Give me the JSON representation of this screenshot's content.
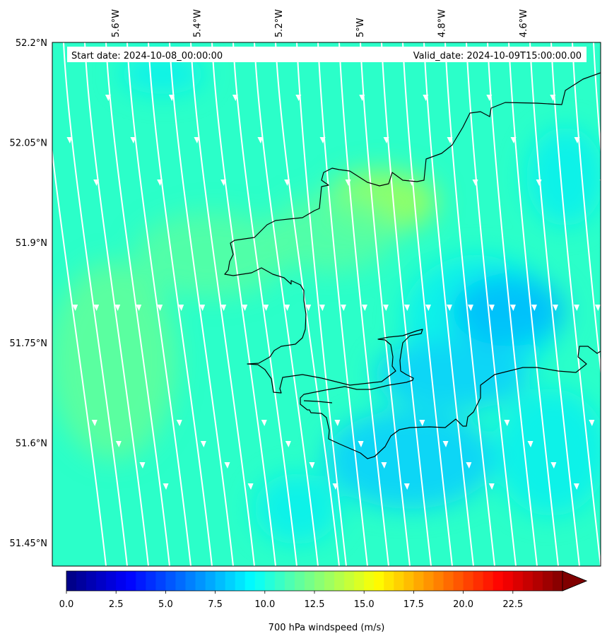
{
  "map": {
    "start_date_label": "Start date: 2024-10-08_00:00:00",
    "valid_date_label": "Valid_date: 2024-10-09T15:00:00.00",
    "lon_ticks": [
      "5.6°W",
      "5.4°W",
      "5.2°W",
      "5°W",
      "4.8°W",
      "4.6°W"
    ],
    "lat_ticks": [
      "52.2°N",
      "52.05°N",
      "51.9°N",
      "51.75°N",
      "51.6°N",
      "51.45°N"
    ],
    "lat_tick_values": [
      52.2,
      52.05,
      51.9,
      51.75,
      51.6,
      51.45
    ],
    "lon_tick_values": [
      -5.6,
      -5.4,
      -5.2,
      -5.0,
      -4.8,
      -4.6
    ],
    "field_colors": {
      "background": "#2bffc9",
      "light_green": "#5affa0",
      "yellow_green": "#8dff6a",
      "cyan": "#10f2e8",
      "blue": "#0ad6f6",
      "deep_blue": "#02c2fa"
    },
    "coastline_color": "#000000",
    "streamline_color": "#ffffff"
  },
  "colorbar": {
    "label": "700 hPa windspeed (m/s)",
    "ticks": [
      "0.0",
      "2.5",
      "5.0",
      "7.5",
      "10.0",
      "12.5",
      "15.0",
      "17.5",
      "20.0",
      "22.5"
    ],
    "tick_values": [
      0,
      2.5,
      5,
      7.5,
      10,
      12.5,
      15,
      17.5,
      20,
      22.5
    ],
    "vmin": 0,
    "vmax": 25,
    "extend": "max",
    "colormap": "jet"
  }
}
